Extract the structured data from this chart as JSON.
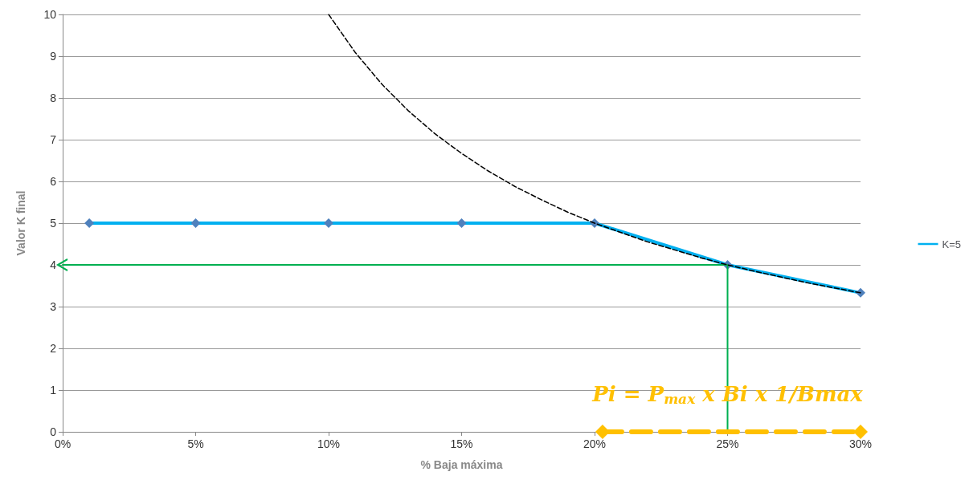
{
  "chart_data": {
    "type": "line",
    "xlabel": "% Baja máxima",
    "ylabel": "Valor K final",
    "xlim": [
      0,
      30
    ],
    "xticks": [
      {
        "value": 0,
        "label": "0%"
      },
      {
        "value": 5,
        "label": "5%"
      },
      {
        "value": 10,
        "label": "10%"
      },
      {
        "value": 15,
        "label": "15%"
      },
      {
        "value": 20,
        "label": "20%"
      },
      {
        "value": 25,
        "label": "25%"
      },
      {
        "value": 30,
        "label": "30%"
      }
    ],
    "ylim": [
      0,
      10
    ],
    "yticks": [
      0,
      1,
      2,
      3,
      4,
      5,
      6,
      7,
      8,
      9,
      10
    ],
    "grid": "y",
    "legend": "right",
    "series": [
      {
        "x": [
          10,
          11,
          12,
          13,
          14,
          15,
          16,
          17,
          18,
          19,
          20,
          22,
          24,
          25,
          26,
          28,
          30
        ],
        "values": [
          10,
          9.09,
          8.33,
          7.69,
          7.14,
          6.67,
          6.25,
          5.88,
          5.56,
          5.26,
          5,
          4.55,
          4.17,
          4,
          3.85,
          3.57,
          3.33
        ],
        "color": "#000000",
        "line_style": "dashed",
        "marker": "none"
      },
      {
        "name": "K=5",
        "x": [
          1,
          5,
          10,
          15,
          20,
          25,
          30
        ],
        "values": [
          5,
          5,
          5,
          5,
          5,
          4,
          3.33
        ],
        "color": "#00b0f0",
        "marker": "diamond",
        "line_style": "solid"
      },
      {
        "x": [
          25,
          25,
          0
        ],
        "values": [
          0,
          4,
          4
        ],
        "color": "#00b050",
        "marker": "none",
        "line_style": "solid"
      },
      {
        "x": [
          20.3,
          30
        ],
        "values": [
          0,
          0
        ],
        "color": "#ffc000",
        "marker": "diamond",
        "line_style": "dashed"
      }
    ],
    "annotations": [
      {
        "text": "Pi = P$_{max}$ x Bi x 1/Bmax",
        "x": 25,
        "y": 0.9
      }
    ]
  }
}
